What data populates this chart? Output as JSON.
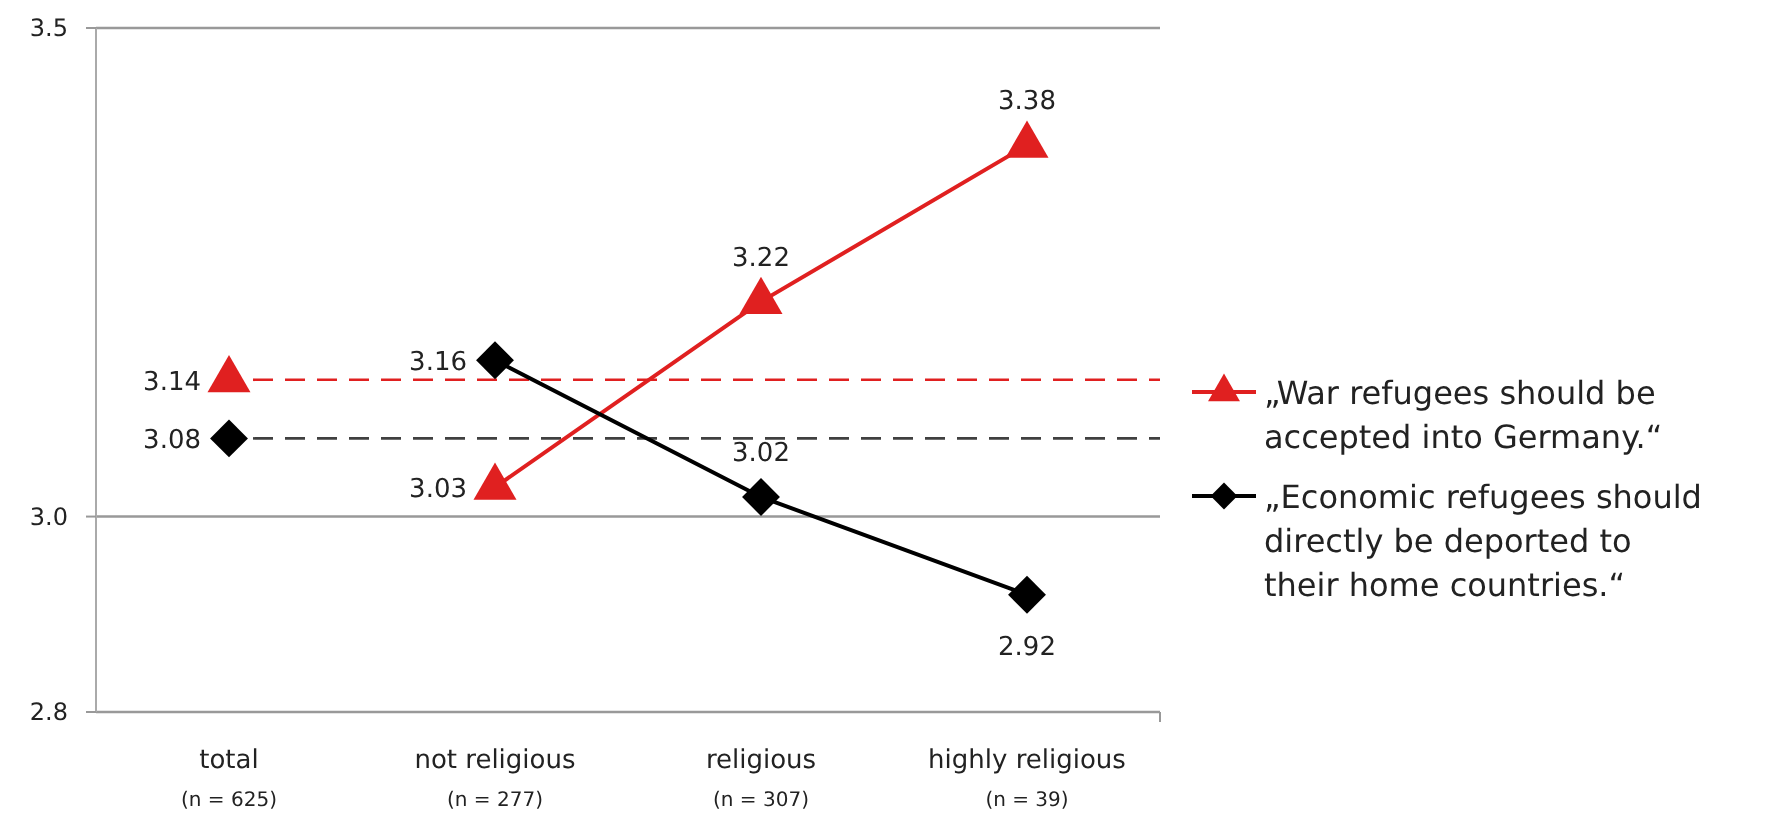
{
  "chart_data": {
    "type": "line",
    "categories": [
      "total\n(n = 625)",
      "not religious\n(n = 277)",
      "religious\n(n = 307)",
      "highly religious\n(n = 39)"
    ],
    "ylim": [
      2.8,
      3.5
    ],
    "yticks": [
      2.8,
      {
        "value": 3.0,
        "label": "3.0"
      },
      3.5
    ],
    "grid": "y",
    "legend": "right",
    "data_labels": true,
    "series": [
      {
        "name": "„War refugees should be accepted into Germany.“",
        "color": "#e02020",
        "marker": "triangle",
        "values": [
          null,
          3.03,
          3.22,
          3.38
        ]
      },
      {
        "name": "„Economic refugees should directly be deported to their home countries.“",
        "color": "#000000",
        "marker": "diamond",
        "values": [
          null,
          3.16,
          3.02,
          2.92
        ]
      },
      {
        "type": "scatter",
        "color": "#e02020",
        "marker": "triangle",
        "values": [
          3.14,
          null,
          null,
          null
        ]
      },
      {
        "type": "scatter",
        "color": "#000000",
        "marker": "diamond",
        "values": [
          3.08,
          null,
          null,
          null
        ]
      }
    ],
    "ref_lines": [
      {
        "axis": "y",
        "value": 3.14,
        "color": "#e02020",
        "line_style": "dashed"
      },
      {
        "axis": "y",
        "value": 3.08,
        "color": "#404040",
        "line_style": "dashed"
      }
    ]
  }
}
